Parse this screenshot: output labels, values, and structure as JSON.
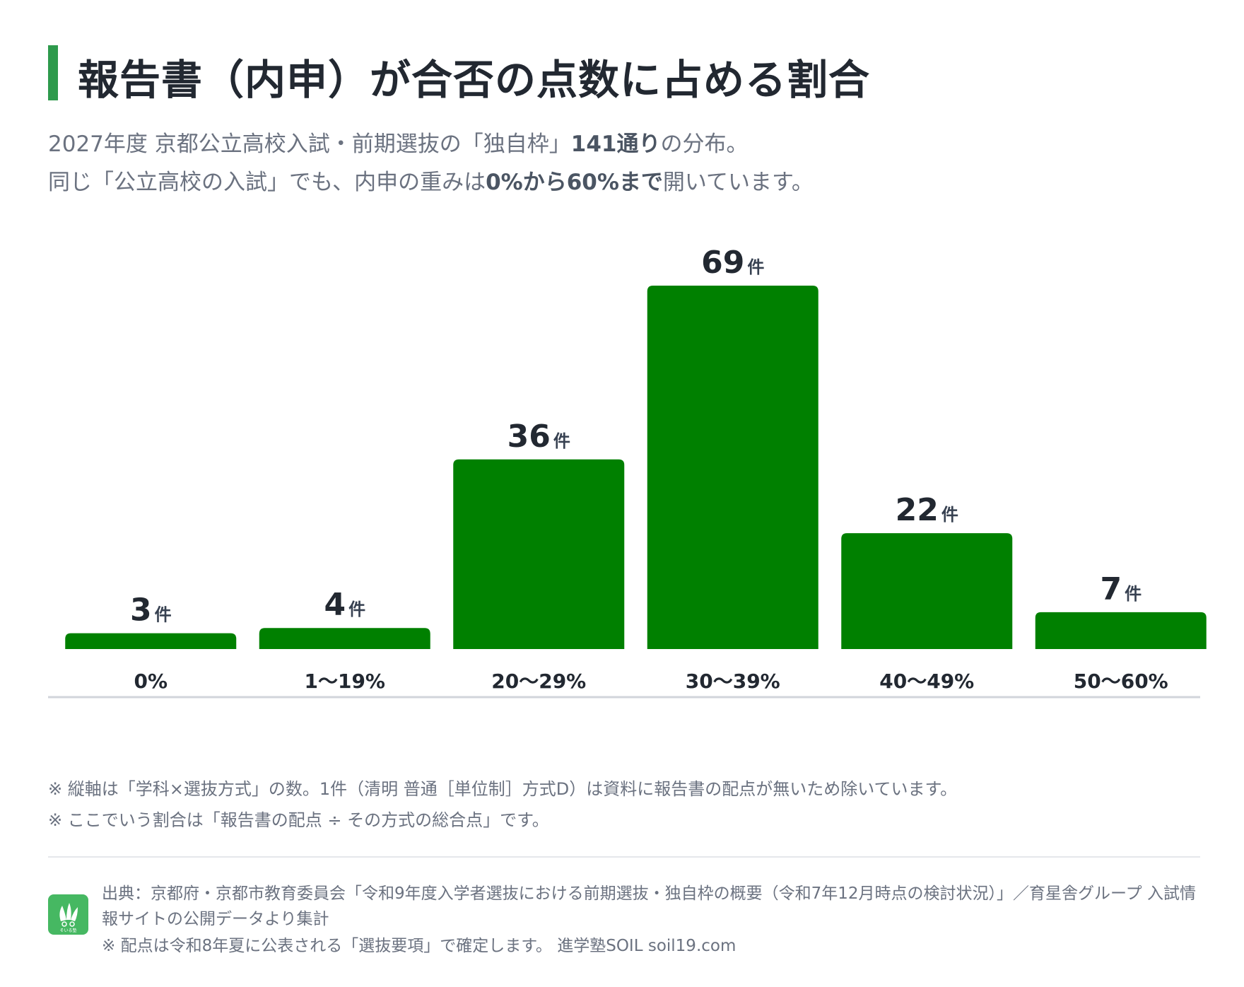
{
  "header": {
    "title": "報告書（内申）が合否の点数に占める割合",
    "sub1_a": "2027年度 京都公立高校入試・前期選抜の「独自枠」",
    "sub1_b": "141通り",
    "sub1_c": "の分布。",
    "sub2_a": "同じ「公立高校の入試」でも、内申の重みは",
    "sub2_b": "0%から60%まで",
    "sub2_c": "開いています。"
  },
  "chart_data": {
    "type": "bar",
    "categories": [
      "0%",
      "1〜19%",
      "20〜29%",
      "30〜39%",
      "40〜49%",
      "50〜60%"
    ],
    "values": [
      3,
      4,
      36,
      69,
      22,
      7
    ],
    "value_unit": "件",
    "bar_color": "#008000",
    "grid": false,
    "legend": "none"
  },
  "notes": {
    "note1": "※ 縦軸は「学科×選抜方式」の数。1件（清明 普通［単位制］方式D）は資料に報告書の配点が無いため除いています。",
    "note2": "※ ここでいう割合は「報告書の配点 ÷ その方式の総合点」です。"
  },
  "footer": {
    "logo_icon": "leaf-logo-icon",
    "logo_text": "そいる塾",
    "source_line1": "出典：京都府・京都市教育委員会「令和9年度入学者選抜における前期選抜・独自枠の概要（令和7年12月時点の検討状況）」／育星舎グループ 入試情",
    "source_line2": "報サイトの公開データより集計",
    "source_line3": "※ 配点は令和8年夏に公表される「選抜要項」で確定します。 進学塾SOIL soil19.com"
  }
}
